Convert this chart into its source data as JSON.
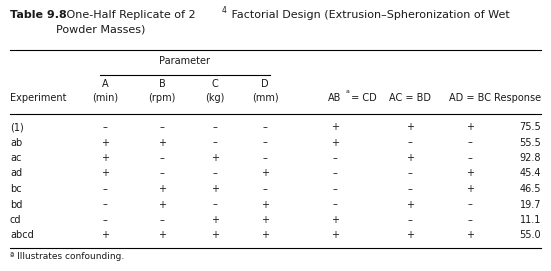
{
  "title_bold": "Table 9.8",
  "title_rest": "   One-Half Replicate of 2",
  "title_sup": "4",
  "title_end": " Factorial Design (Extrusion–Spheronization of Wet",
  "title_line2": "Powder Masses)",
  "param_label": "Parameter",
  "experiments": [
    "(1)",
    "ab",
    "ac",
    "ad",
    "bc",
    "bd",
    "cd",
    "abcd"
  ],
  "data": [
    [
      "–",
      "–",
      "–",
      "–",
      "+",
      "+",
      "+",
      "75.5"
    ],
    [
      "+",
      "+",
      "–",
      "–",
      "+",
      "–",
      "–",
      "55.5"
    ],
    [
      "+",
      "–",
      "+",
      "–",
      "–",
      "+",
      "–",
      "92.8"
    ],
    [
      "+",
      "–",
      "–",
      "+",
      "–",
      "–",
      "+",
      "45.4"
    ],
    [
      "–",
      "+",
      "+",
      "–",
      "–",
      "–",
      "+",
      "46.5"
    ],
    [
      "–",
      "+",
      "–",
      "+",
      "–",
      "+",
      "–",
      "19.7"
    ],
    [
      "–",
      "–",
      "+",
      "+",
      "+",
      "–",
      "–",
      "11.1"
    ],
    [
      "+",
      "+",
      "+",
      "+",
      "+",
      "+",
      "+",
      "55.0"
    ]
  ],
  "footnote": "ª Illustrates confounding.",
  "bg_color": "#ffffff",
  "text_color": "#1a1a1a",
  "font_size": 7.0,
  "title_font_size": 8.0
}
